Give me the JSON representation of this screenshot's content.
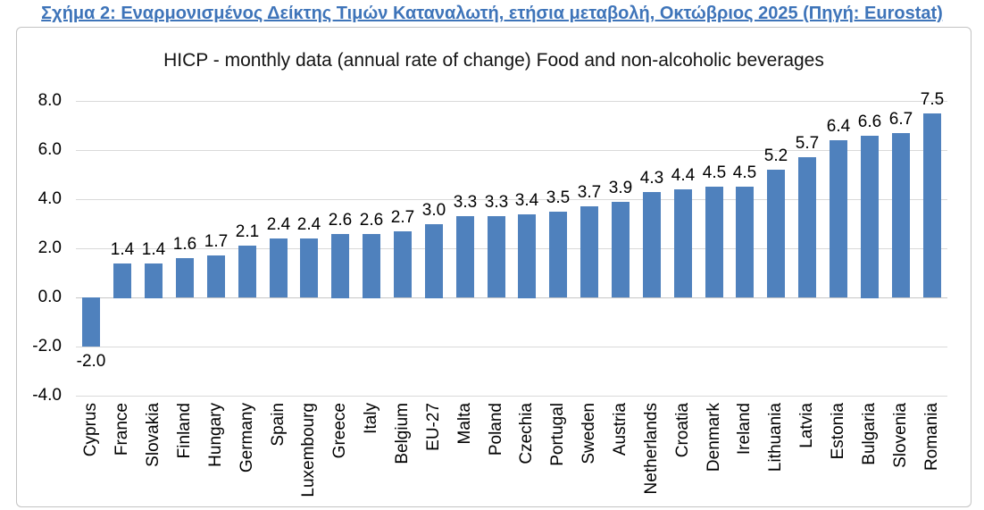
{
  "header": {
    "title": "Σχήμα 2: Εναρμονισμένος Δείκτης Τιμών Καταναλωτή, ετήσια μεταβολή, Οκτώβριος 2025 (Πηγή: Eurostat)"
  },
  "chart_data": {
    "type": "bar",
    "title": "HICP - monthly data (annual rate of change) Food and non-alcoholic beverages",
    "categories": [
      "Cyprus",
      "France",
      "Slovakia",
      "Finland",
      "Hungary",
      "Germany",
      "Spain",
      "Luxembourg",
      "Greece",
      "Italy",
      "Belgium",
      "EU-27",
      "Malta",
      "Poland",
      "Czechia",
      "Portugal",
      "Sweden",
      "Austria",
      "Netherlands",
      "Croatia",
      "Denmark",
      "Ireland",
      "Lithuania",
      "Latvia",
      "Estonia",
      "Bulgaria",
      "Slovenia",
      "Romania"
    ],
    "values": [
      -2.0,
      1.4,
      1.4,
      1.6,
      1.7,
      2.1,
      2.4,
      2.4,
      2.6,
      2.6,
      2.7,
      3.0,
      3.3,
      3.3,
      3.4,
      3.5,
      3.7,
      3.9,
      4.3,
      4.4,
      4.5,
      4.5,
      5.2,
      5.7,
      6.4,
      6.6,
      6.7,
      7.5
    ],
    "ylim": [
      -4,
      8
    ],
    "yticks": [
      8,
      6,
      4,
      2,
      0,
      -2,
      -4
    ],
    "grid": "horizontal",
    "legend": "none",
    "label_decimals": 1
  },
  "colors": {
    "heading_blue": "#3E74B9",
    "bar_blue": "#4F81BD",
    "gridline_gray": "#D9D9D9",
    "chart_border_gray": "#C3C3C3"
  }
}
